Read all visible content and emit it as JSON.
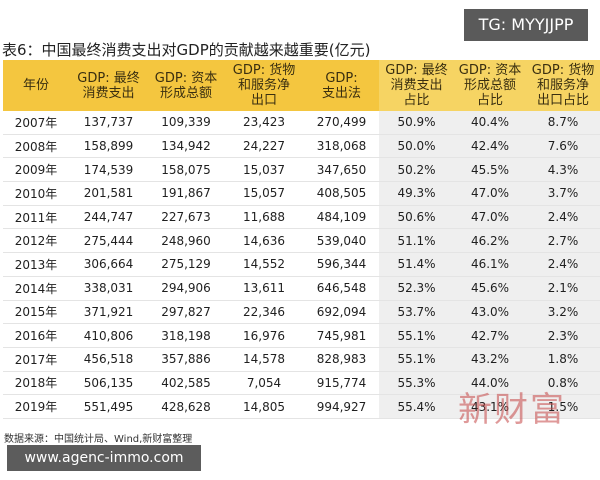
{
  "watermark_top": "TG: MYYJJPP",
  "title": "表6：中国最终消费支出对GDP的贡献越来越重要(亿元)",
  "headers": [
    [
      "年份"
    ],
    [
      "GDP: 最终",
      "消费支出"
    ],
    [
      "GDP: 资本",
      "形成总额"
    ],
    [
      "GDP: 货物",
      "和服务净",
      "出口"
    ],
    [
      "GDP:",
      "支出法"
    ],
    [
      "GDP: 最终",
      "消费支出",
      "占比"
    ],
    [
      "GDP: 资本",
      "形成总额",
      "占比"
    ],
    [
      "GDP: 货物",
      "和服务净",
      "出口占比"
    ]
  ],
  "rows": [
    [
      "2007年",
      "137,737",
      "109,339",
      "23,423",
      "270,499",
      "50.9%",
      "40.4%",
      "8.7%"
    ],
    [
      "2008年",
      "158,899",
      "134,942",
      "24,227",
      "318,068",
      "50.0%",
      "42.4%",
      "7.6%"
    ],
    [
      "2009年",
      "174,539",
      "158,075",
      "15,037",
      "347,650",
      "50.2%",
      "45.5%",
      "4.3%"
    ],
    [
      "2010年",
      "201,581",
      "191,867",
      "15,057",
      "408,505",
      "49.3%",
      "47.0%",
      "3.7%"
    ],
    [
      "2011年",
      "244,747",
      "227,673",
      "11,688",
      "484,109",
      "50.6%",
      "47.0%",
      "2.4%"
    ],
    [
      "2012年",
      "275,444",
      "248,960",
      "14,636",
      "539,040",
      "51.1%",
      "46.2%",
      "2.7%"
    ],
    [
      "2013年",
      "306,664",
      "275,129",
      "14,552",
      "596,344",
      "51.4%",
      "46.1%",
      "2.4%"
    ],
    [
      "2014年",
      "338,031",
      "294,906",
      "13,611",
      "646,548",
      "52.3%",
      "45.6%",
      "2.1%"
    ],
    [
      "2015年",
      "371,921",
      "297,827",
      "22,346",
      "692,094",
      "53.7%",
      "43.0%",
      "3.2%"
    ],
    [
      "2016年",
      "410,806",
      "318,198",
      "16,976",
      "745,981",
      "55.1%",
      "42.7%",
      "2.3%"
    ],
    [
      "2017年",
      "456,518",
      "357,886",
      "14,578",
      "828,983",
      "55.1%",
      "43.2%",
      "1.8%"
    ],
    [
      "2018年",
      "506,135",
      "402,585",
      "7,054",
      "915,774",
      "55.3%",
      "44.0%",
      "0.8%"
    ],
    [
      "2019年",
      "551,495",
      "428,628",
      "14,805",
      "994,927",
      "55.4%",
      "43.1%",
      "1.5%"
    ]
  ],
  "source": "数据来源：中国统计局、Wind,新财富整理",
  "stamp": "新财富",
  "watermark_bottom": "www.agenc-immo.com"
}
